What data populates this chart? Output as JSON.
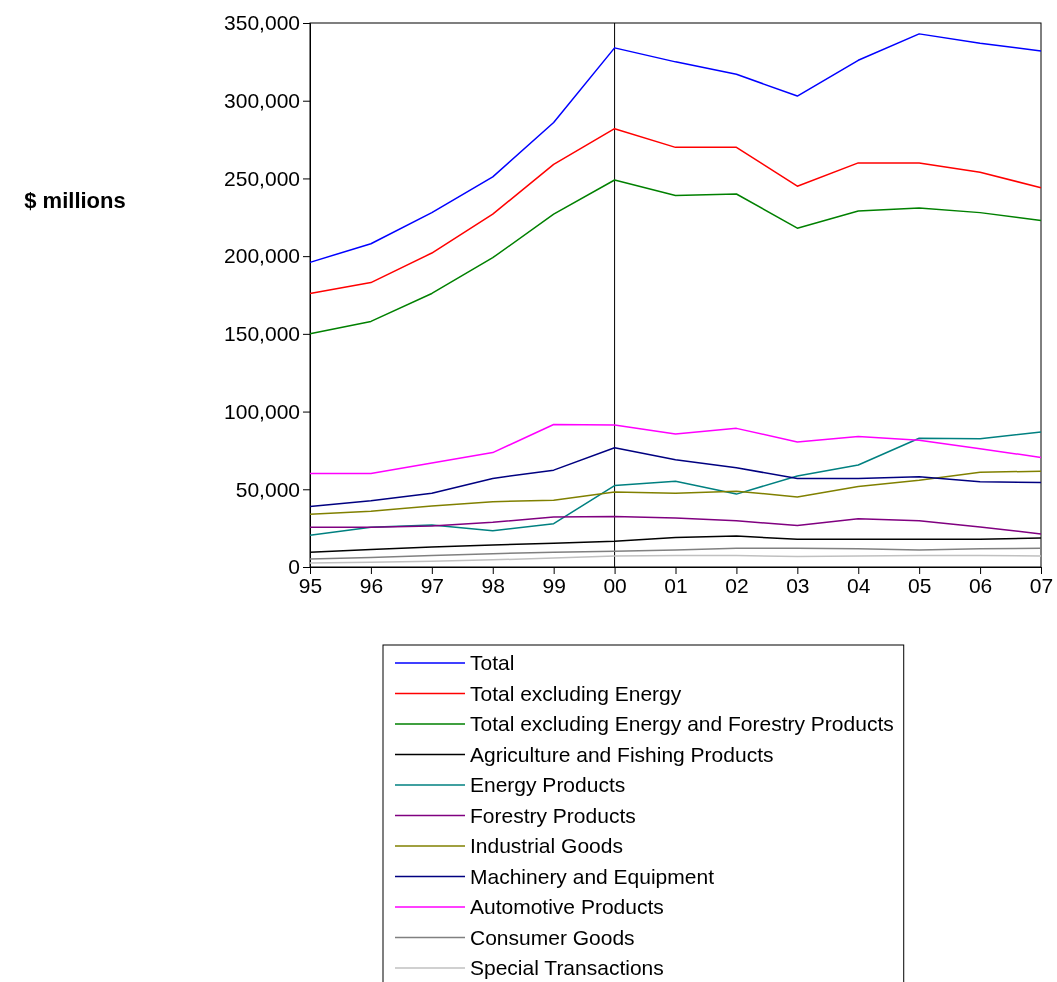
{
  "chart_data": {
    "type": "line",
    "ylabel": "$ millions",
    "categories": [
      "95",
      "96",
      "97",
      "98",
      "99",
      "00",
      "01",
      "02",
      "03",
      "04",
      "05",
      "06",
      "07"
    ],
    "ylim": [
      0,
      350000
    ],
    "yticks": [
      {
        "value": 0,
        "label": "0"
      },
      {
        "value": 50000,
        "label": "50,000"
      },
      {
        "value": 100000,
        "label": "100,000"
      },
      {
        "value": 150000,
        "label": "150,000"
      },
      {
        "value": 200000,
        "label": "200,000"
      },
      {
        "value": 250000,
        "label": "250,000"
      },
      {
        "value": 300000,
        "label": "300,000"
      },
      {
        "value": 350000,
        "label": "350,000"
      }
    ],
    "grid": false,
    "legend": "bottom",
    "marker": "none",
    "line_style": "solid",
    "ref_lines": [
      {
        "axis": "x",
        "value": "00",
        "color": "#000000"
      }
    ],
    "series": [
      {
        "name": "Total",
        "color": "#0000ff",
        "values": [
          196000,
          208000,
          228000,
          251000,
          286000,
          334000,
          325000,
          317000,
          303000,
          326000,
          343000,
          337000,
          332000
        ]
      },
      {
        "name": "Total excluding Energy",
        "color": "#ff0000",
        "values": [
          176000,
          183000,
          202000,
          227000,
          259000,
          282000,
          270000,
          270000,
          245000,
          260000,
          260000,
          254000,
          244000
        ]
      },
      {
        "name": "Total excluding Energy and Forestry Products",
        "color": "#008000",
        "values": [
          150000,
          158000,
          176000,
          199000,
          227000,
          249000,
          239000,
          240000,
          218000,
          229000,
          231000,
          228000,
          223000
        ]
      },
      {
        "name": "Agriculture and Fishing Products",
        "color": "#000000",
        "values": [
          9500,
          11300,
          12900,
          14100,
          15300,
          16600,
          19000,
          19900,
          17800,
          17800,
          17800,
          17800,
          18700
        ]
      },
      {
        "name": "Energy Products",
        "color": "#008080",
        "values": [
          20500,
          25500,
          27000,
          23300,
          27900,
          52400,
          55200,
          46900,
          58600,
          65600,
          82800,
          82500,
          86800
        ]
      },
      {
        "name": "Forestry Products",
        "color": "#800080",
        "values": [
          25500,
          25500,
          26400,
          28800,
          32200,
          32500,
          31600,
          29700,
          26700,
          31000,
          29700,
          25800,
          21200
        ]
      },
      {
        "name": "Industrial Goods",
        "color": "#808000",
        "values": [
          34000,
          35900,
          39300,
          42000,
          42900,
          48200,
          47500,
          48800,
          45100,
          51800,
          55800,
          61000,
          61600
        ]
      },
      {
        "name": "Machinery and Equipment",
        "color": "#000080",
        "values": [
          39000,
          42600,
          47500,
          57000,
          62300,
          76700,
          69000,
          63800,
          57000,
          57000,
          58000,
          54900,
          54300
        ]
      },
      {
        "name": "Automotive Products",
        "color": "#ff00ff",
        "values": [
          60100,
          60100,
          66900,
          73600,
          91700,
          91400,
          85600,
          89200,
          80400,
          84000,
          81600,
          76100,
          70500
        ]
      },
      {
        "name": "Consumer Goods",
        "color": "#808080",
        "values": [
          5200,
          6100,
          7400,
          8600,
          9500,
          10100,
          11000,
          12000,
          12000,
          11700,
          11000,
          11700,
          12000
        ]
      },
      {
        "name": "Special Transactions",
        "color": "#c0c0c0",
        "values": [
          2500,
          3100,
          3700,
          4600,
          5800,
          7100,
          7400,
          7400,
          6700,
          7100,
          7400,
          7400,
          7100
        ]
      }
    ]
  }
}
